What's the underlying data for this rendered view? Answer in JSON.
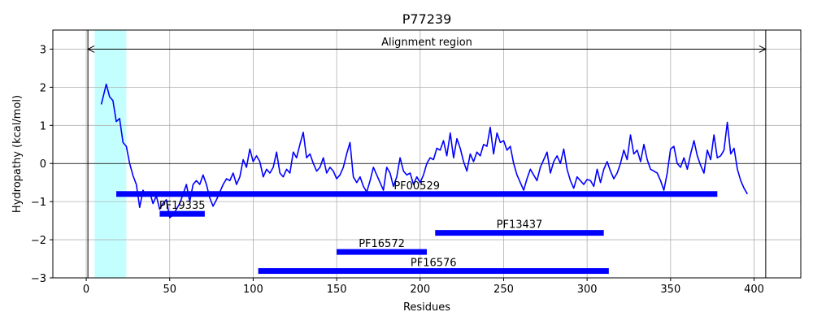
{
  "chart_data": {
    "type": "line",
    "title": "P77239",
    "xlabel": "Residues",
    "ylabel": "Hydropathy (kcal/mol)",
    "xlim": [
      -20,
      428
    ],
    "ylim": [
      -3,
      3.5
    ],
    "xticks": [
      0,
      50,
      100,
      150,
      200,
      250,
      300,
      350,
      400
    ],
    "yticks": [
      -3,
      -2,
      -1,
      0,
      1,
      2,
      3
    ],
    "ytick_labels": [
      "−3",
      "−2",
      "−1",
      "0",
      "1",
      "2",
      "3"
    ],
    "grid": true,
    "series": [
      {
        "color": "#0000ff",
        "x": [
          9,
          12,
          14,
          16,
          18,
          20,
          22,
          24,
          26,
          28,
          30,
          32,
          34,
          36,
          38,
          40,
          42,
          44,
          46,
          48,
          50,
          52,
          54,
          56,
          58,
          60,
          62,
          64,
          66,
          68,
          70,
          72,
          74,
          76,
          78,
          80,
          82,
          84,
          86,
          88,
          90,
          92,
          94,
          96,
          98,
          100,
          102,
          104,
          106,
          108,
          110,
          112,
          114,
          116,
          118,
          120,
          122,
          124,
          126,
          128,
          130,
          132,
          134,
          136,
          138,
          140,
          142,
          144,
          146,
          148,
          150,
          152,
          154,
          156,
          158,
          160,
          162,
          164,
          166,
          168,
          170,
          172,
          174,
          176,
          178,
          180,
          182,
          184,
          186,
          188,
          190,
          192,
          194,
          196,
          198,
          200,
          202,
          204,
          206,
          208,
          210,
          212,
          214,
          216,
          218,
          220,
          222,
          224,
          226,
          228,
          230,
          232,
          234,
          236,
          238,
          240,
          242,
          244,
          246,
          248,
          250,
          252,
          254,
          256,
          258,
          260,
          262,
          264,
          266,
          268,
          270,
          272,
          274,
          276,
          278,
          280,
          282,
          284,
          286,
          288,
          290,
          292,
          294,
          296,
          298,
          300,
          302,
          304,
          306,
          308,
          310,
          312,
          314,
          316,
          318,
          320,
          322,
          324,
          326,
          328,
          330,
          332,
          334,
          336,
          338,
          340,
          342,
          344,
          346,
          348,
          350,
          352,
          354,
          356,
          358,
          360,
          362,
          364,
          366,
          368,
          370,
          372,
          374,
          376,
          378,
          380,
          382,
          384,
          386,
          388,
          390,
          392,
          394,
          396
        ],
        "y": [
          1.55,
          2.08,
          1.75,
          1.65,
          1.1,
          1.18,
          0.55,
          0.45,
          0.0,
          -0.32,
          -0.55,
          -1.15,
          -0.7,
          -0.85,
          -0.75,
          -1.05,
          -0.85,
          -1.2,
          -1.05,
          -0.95,
          -1.42,
          -1.35,
          -1.2,
          -1.05,
          -0.8,
          -0.55,
          -1.0,
          -0.55,
          -0.45,
          -0.55,
          -0.3,
          -0.55,
          -0.9,
          -1.12,
          -0.95,
          -0.75,
          -0.55,
          -0.4,
          -0.45,
          -0.25,
          -0.55,
          -0.35,
          0.1,
          -0.1,
          0.38,
          0.05,
          0.2,
          0.05,
          -0.35,
          -0.15,
          -0.25,
          -0.1,
          0.3,
          -0.25,
          -0.35,
          -0.15,
          -0.25,
          0.3,
          0.15,
          0.5,
          0.82,
          0.15,
          0.25,
          0.0,
          -0.2,
          -0.1,
          0.15,
          -0.25,
          -0.1,
          -0.2,
          -0.4,
          -0.3,
          -0.1,
          0.25,
          0.55,
          -0.35,
          -0.5,
          -0.35,
          -0.6,
          -0.75,
          -0.45,
          -0.1,
          -0.3,
          -0.5,
          -0.7,
          -0.1,
          -0.25,
          -0.6,
          -0.35,
          0.15,
          -0.2,
          -0.3,
          -0.25,
          -0.55,
          -0.35,
          -0.5,
          -0.3,
          0.0,
          0.15,
          0.1,
          0.4,
          0.35,
          0.6,
          0.2,
          0.8,
          0.15,
          0.65,
          0.4,
          0.05,
          -0.2,
          0.25,
          0.05,
          0.3,
          0.2,
          0.5,
          0.45,
          0.95,
          0.25,
          0.8,
          0.55,
          0.6,
          0.35,
          0.45,
          0.0,
          -0.3,
          -0.5,
          -0.7,
          -0.4,
          -0.15,
          -0.3,
          -0.45,
          -0.1,
          0.1,
          0.3,
          -0.25,
          0.05,
          0.2,
          0.0,
          0.38,
          -0.15,
          -0.45,
          -0.65,
          -0.35,
          -0.45,
          -0.55,
          -0.42,
          -0.45,
          -0.6,
          -0.15,
          -0.5,
          -0.15,
          0.05,
          -0.2,
          -0.4,
          -0.25,
          0.0,
          0.35,
          0.1,
          0.75,
          0.25,
          0.35,
          0.05,
          0.5,
          0.1,
          -0.15,
          -0.2,
          -0.25,
          -0.45,
          -0.7,
          -0.25,
          0.38,
          0.45,
          0.0,
          -0.1,
          0.15,
          -0.15,
          0.25,
          0.6,
          0.2,
          -0.05,
          -0.25,
          0.35,
          0.1,
          0.75,
          0.15,
          0.2,
          0.35,
          1.08,
          0.25,
          0.4,
          -0.15,
          -0.45,
          -0.65,
          -0.8
        ]
      }
    ],
    "highlight_span": {
      "x0": 5,
      "x1": 24,
      "color": "#c4ffff"
    },
    "vlines": [
      1,
      407
    ],
    "hline": 0,
    "annotations": [
      {
        "text": "Alignment region",
        "x": 204,
        "y": 3.18
      },
      {
        "arrow_from": 1,
        "arrow_to": 407,
        "y": 3.0
      }
    ],
    "domains": [
      {
        "label": "PF00529",
        "start": 18,
        "end": 378,
        "y": -0.8
      },
      {
        "label": "PF19335",
        "start": 44,
        "end": 71,
        "y": -1.32
      },
      {
        "label": "PF13437",
        "start": 209,
        "end": 310,
        "y": -1.82
      },
      {
        "label": "PF16572",
        "start": 150,
        "end": 204,
        "y": -2.32
      },
      {
        "label": "PF16576",
        "start": 103,
        "end": 313,
        "y": -2.82
      }
    ],
    "domain_color": "#0000ff"
  }
}
